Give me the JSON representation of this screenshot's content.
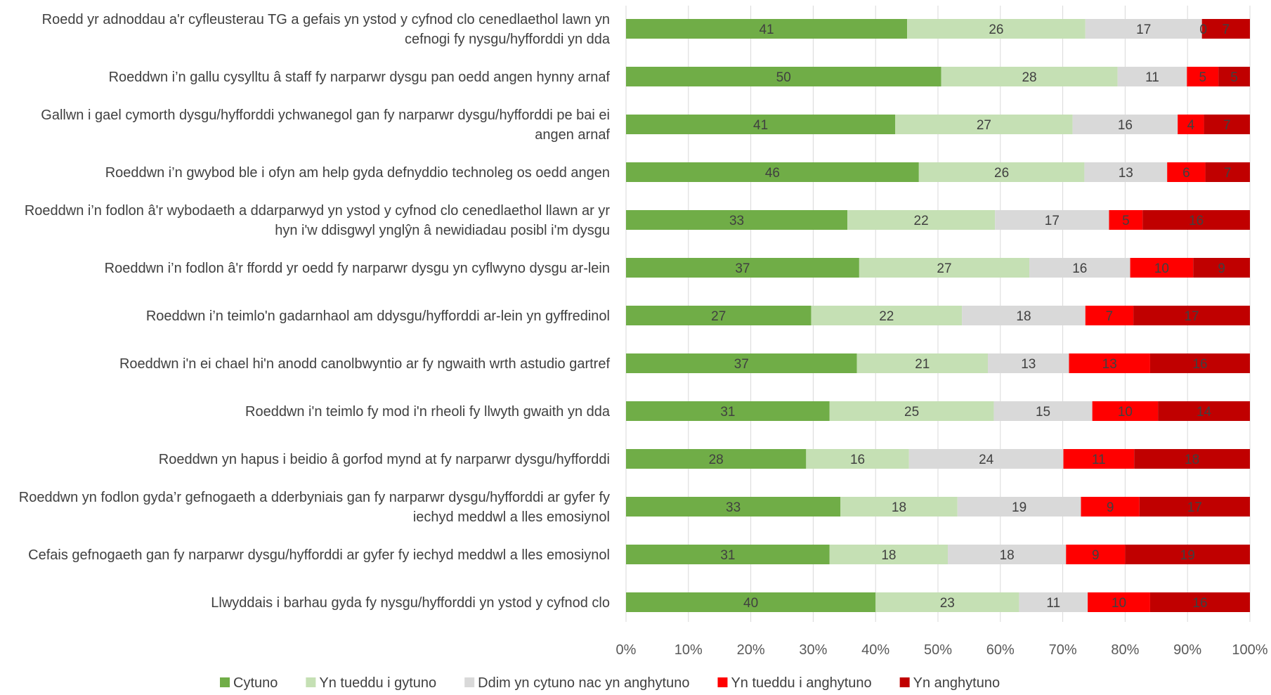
{
  "chart_data": {
    "type": "bar",
    "orientation": "horizontal",
    "stacked": true,
    "percent_stacked": true,
    "categories": [
      "Roedd yr adnoddau a'r cyfleusterau TG a gefais yn ystod y cyfnod clo cenedlaethol lawn yn cefnogi fy nysgu/hyfforddi yn dda",
      "Roeddwn i’n gallu cysylltu â staff fy narparwr dysgu pan oedd angen hynny arnaf",
      "Gallwn i gael cymorth dysgu/hyfforddi ychwanegol gan fy narparwr dysgu/hyfforddi pe bai ei angen arnaf",
      "Roeddwn i’n gwybod ble i ofyn am help gyda defnyddio technoleg os oedd angen",
      "Roeddwn i’n fodlon â'r wybodaeth a ddarparwyd yn ystod y cyfnod clo cenedlaethol llawn ar yr hyn i'w ddisgwyl ynglŷn â newidiadau posibl i'm dysgu",
      "Roeddwn i’n fodlon â'r ffordd yr oedd fy narparwr dysgu yn cyflwyno dysgu ar-lein",
      "Roeddwn i’n teimlo'n gadarnhaol am ddysgu/hyfforddi ar-lein yn gyffredinol",
      "Roeddwn i'n ei chael hi'n anodd canolbwyntio ar fy ngwaith wrth astudio gartref",
      "Roeddwn i'n teimlo fy mod i'n rheoli fy llwyth gwaith yn dda",
      "Roeddwn yn hapus i beidio â gorfod mynd at fy narparwr dysgu/hyfforddi",
      "Roeddwn yn fodlon gyda’r gefnogaeth a dderbyniais gan fy narparwr dysgu/hyfforddi ar gyfer fy iechyd meddwl a lles emosiynol",
      "Cefais gefnogaeth gan fy narparwr dysgu/hyfforddi ar gyfer fy iechyd meddwl a lles emosiynol",
      "Llwyddais i barhau gyda fy nysgu/hyfforddi yn ystod y cyfnod clo"
    ],
    "series": [
      {
        "name": "Cytuno",
        "color": "#70ad47",
        "values": [
          41,
          50,
          41,
          46,
          33,
          37,
          27,
          37,
          31,
          28,
          33,
          31,
          40
        ]
      },
      {
        "name": "Yn tueddu i gytuno",
        "color": "#c5e0b4",
        "values": [
          26,
          28,
          27,
          26,
          22,
          27,
          22,
          21,
          25,
          16,
          18,
          18,
          23
        ]
      },
      {
        "name": "Ddim yn cytuno nac yn anghytuno",
        "color": "#d9d9d9",
        "values": [
          17,
          11,
          16,
          13,
          17,
          16,
          18,
          13,
          15,
          24,
          19,
          18,
          11
        ]
      },
      {
        "name": "Yn tueddu i anghytuno",
        "color": "#ff0000",
        "values": [
          0,
          5,
          4,
          6,
          5,
          10,
          7,
          13,
          10,
          11,
          9,
          9,
          10
        ]
      },
      {
        "name": "Yn anghytuno",
        "color": "#c00000",
        "values": [
          7,
          5,
          7,
          7,
          16,
          9,
          17,
          16,
          14,
          18,
          17,
          19,
          16
        ]
      }
    ],
    "xlim": [
      0,
      100
    ],
    "x_ticks": [
      "0%",
      "10%",
      "20%",
      "30%",
      "40%",
      "50%",
      "60%",
      "70%",
      "80%",
      "90%",
      "100%"
    ],
    "legend_position": "bottom",
    "grid": true
  }
}
